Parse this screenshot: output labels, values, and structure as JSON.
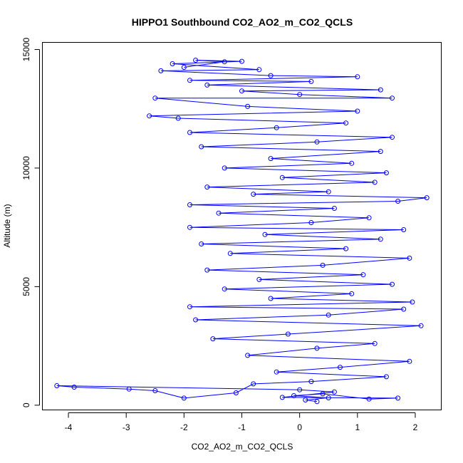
{
  "chart_data": {
    "type": "scatter",
    "title": "HIPPO1 Southbound CO2_AO2_m_CO2_QCLS",
    "xlabel": "CO2_AO2_m_CO2_QCLS",
    "ylabel": "Altitude (m)",
    "xlim": [
      -4.45,
      2.45
    ],
    "ylim": [
      -200,
      15300
    ],
    "x_ticks": [
      -4,
      -3,
      -2,
      -1,
      0,
      1,
      2
    ],
    "y_ticks": [
      0,
      5000,
      10000,
      15000
    ],
    "x_tick_labels": [
      "-4",
      "-3",
      "-2",
      "-1",
      "0",
      "1",
      "2"
    ],
    "y_tick_labels": [
      "0",
      "5000",
      "10000",
      "15000"
    ],
    "grid": false,
    "legend": "none",
    "series_style": "points connected by lines (type b)",
    "series_color": "#0000ff",
    "series": [
      {
        "points": [
          [
            0.3,
            150
          ],
          [
            0.1,
            220
          ],
          [
            0.5,
            310
          ],
          [
            -0.1,
            400
          ],
          [
            0.4,
            480
          ],
          [
            1.2,
            260
          ],
          [
            1.7,
            300
          ],
          [
            -0.3,
            330
          ],
          [
            0.6,
            560
          ],
          [
            0.0,
            650
          ],
          [
            -4.2,
            820
          ],
          [
            -3.9,
            760
          ],
          [
            -2.95,
            680
          ],
          [
            -2.5,
            610
          ],
          [
            -2.0,
            300
          ],
          [
            -1.1,
            520
          ],
          [
            -0.8,
            900
          ],
          [
            0.2,
            1000
          ],
          [
            1.5,
            1200
          ],
          [
            -0.4,
            1400
          ],
          [
            0.7,
            1600
          ],
          [
            1.9,
            1850
          ],
          [
            -0.9,
            2100
          ],
          [
            0.3,
            2400
          ],
          [
            1.3,
            2600
          ],
          [
            -1.5,
            2800
          ],
          [
            -0.2,
            3000
          ],
          [
            2.1,
            3350
          ],
          [
            -1.8,
            3600
          ],
          [
            0.5,
            3800
          ],
          [
            1.8,
            4050
          ],
          [
            -1.9,
            4150
          ],
          [
            1.95,
            4350
          ],
          [
            -0.5,
            4500
          ],
          [
            0.9,
            4700
          ],
          [
            -1.3,
            4900
          ],
          [
            1.6,
            5100
          ],
          [
            -0.7,
            5300
          ],
          [
            1.1,
            5500
          ],
          [
            -1.6,
            5700
          ],
          [
            0.4,
            5900
          ],
          [
            1.9,
            6200
          ],
          [
            -1.2,
            6400
          ],
          [
            0.8,
            6600
          ],
          [
            -1.7,
            6800
          ],
          [
            1.4,
            7000
          ],
          [
            -0.6,
            7200
          ],
          [
            1.8,
            7400
          ],
          [
            -1.9,
            7500
          ],
          [
            0.2,
            7700
          ],
          [
            1.2,
            7900
          ],
          [
            -1.4,
            8100
          ],
          [
            0.6,
            8300
          ],
          [
            -1.9,
            8450
          ],
          [
            1.7,
            8600
          ],
          [
            2.2,
            8750
          ],
          [
            -0.8,
            8900
          ],
          [
            0.5,
            9000
          ],
          [
            -1.6,
            9200
          ],
          [
            1.3,
            9400
          ],
          [
            -0.3,
            9600
          ],
          [
            1.5,
            9800
          ],
          [
            -1.3,
            10000
          ],
          [
            0.9,
            10200
          ],
          [
            -0.5,
            10400
          ],
          [
            1.4,
            10700
          ],
          [
            -1.7,
            10900
          ],
          [
            0.3,
            11100
          ],
          [
            1.6,
            11300
          ],
          [
            -1.9,
            11500
          ],
          [
            -0.4,
            11700
          ],
          [
            0.8,
            11900
          ],
          [
            -2.1,
            12100
          ],
          [
            -2.6,
            12200
          ],
          [
            1.0,
            12400
          ],
          [
            -0.9,
            12600
          ],
          [
            -2.5,
            12950
          ],
          [
            1.6,
            12950
          ],
          [
            0.0,
            13100
          ],
          [
            -1.0,
            13250
          ],
          [
            1.4,
            13300
          ],
          [
            -1.6,
            13500
          ],
          [
            0.2,
            13650
          ],
          [
            -1.9,
            13700
          ],
          [
            1.0,
            13850
          ],
          [
            -0.5,
            13900
          ],
          [
            -2.4,
            14100
          ],
          [
            -0.7,
            14150
          ],
          [
            -2.2,
            14400
          ],
          [
            -1.0,
            14500
          ],
          [
            -1.8,
            14550
          ],
          [
            -1.3,
            14480
          ],
          [
            -2.0,
            14250
          ]
        ]
      }
    ]
  }
}
